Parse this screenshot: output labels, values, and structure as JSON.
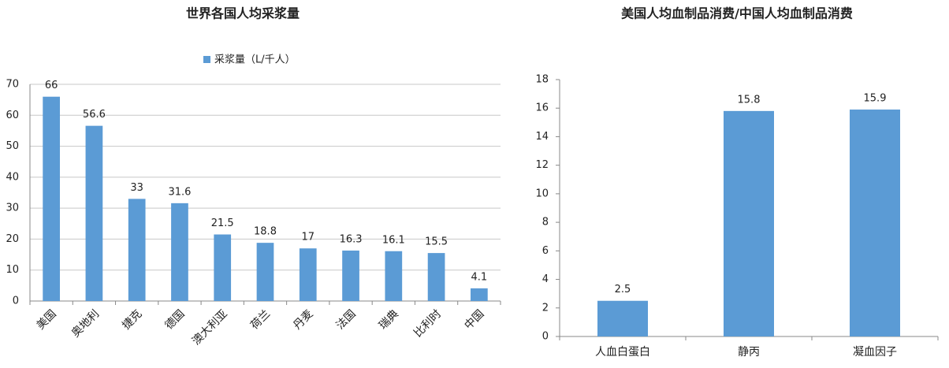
{
  "chart_data": [
    {
      "type": "bar",
      "title": "世界各国人均采浆量",
      "categories": [
        "美国",
        "奥地利",
        "捷克",
        "德国",
        "澳大利亚",
        "荷兰",
        "丹麦",
        "法国",
        "瑞典",
        "比利时",
        "中国"
      ],
      "series": [
        {
          "name": "采浆量（L/千人）",
          "color": "#5b9bd5",
          "values": [
            66,
            56.6,
            33,
            31.6,
            21.5,
            18.8,
            17,
            16.3,
            16.1,
            15.5,
            4.1
          ]
        }
      ],
      "ylim": [
        0,
        70
      ],
      "yticks": [
        0,
        10,
        20,
        30,
        40,
        50,
        60,
        70
      ],
      "grid": true,
      "legend": "top"
    },
    {
      "type": "bar",
      "title": "美国人均血制品消费/中国人均血制品消费",
      "categories": [
        "人血白蛋白",
        "静丙",
        "凝血因子"
      ],
      "values": [
        2.5,
        15.8,
        15.9
      ],
      "color": "#5b9bd5",
      "ylim": [
        0,
        18
      ],
      "yticks": [
        0,
        2,
        4,
        6,
        8,
        10,
        12,
        14,
        16,
        18
      ],
      "grid": false
    }
  ]
}
